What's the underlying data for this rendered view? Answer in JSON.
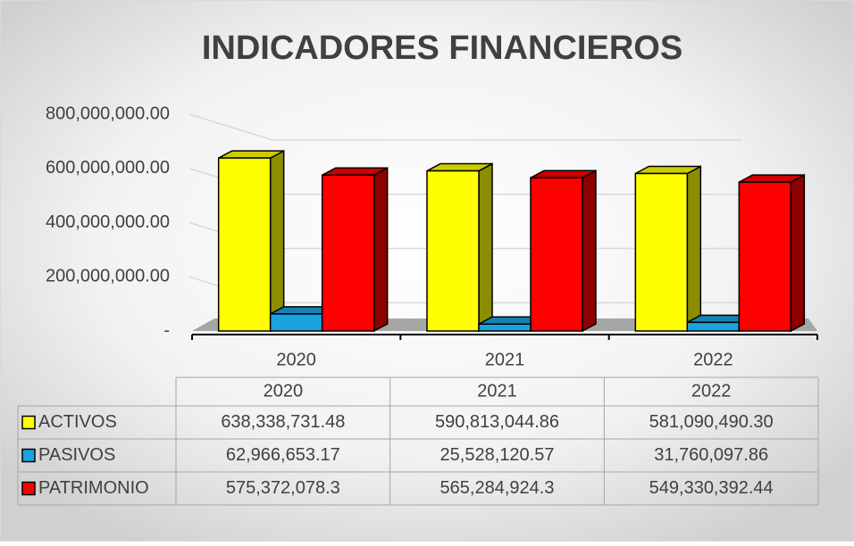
{
  "chart_data": {
    "type": "bar",
    "title": "INDICADORES FINANCIEROS",
    "categories": [
      "2020",
      "2021",
      "2022"
    ],
    "series": [
      {
        "name": "ACTIVOS",
        "color": "#ffff00",
        "values": [
          638338731.48,
          590813044.86,
          581090490.3
        ],
        "value_labels": [
          "638,338,731.48",
          "590,813,044.86",
          "581,090,490.30"
        ]
      },
      {
        "name": "PASIVOS",
        "color": "#1aa3e0",
        "values": [
          62966653.17,
          25528120.57,
          31760097.86
        ],
        "value_labels": [
          "62,966,653.17",
          "25,528,120.57",
          "31,760,097.86"
        ]
      },
      {
        "name": "PATRIMONIO",
        "color": "#ff0000",
        "values": [
          575372078.3,
          565284924.3,
          549330392.44
        ],
        "value_labels": [
          "575,372,078.3",
          "565,284,924.3",
          "549,330,392.44"
        ]
      }
    ],
    "ylim": [
      0,
      800000000
    ],
    "yticks": [
      {
        "value": 0,
        "label": "-"
      },
      {
        "value": 200000000,
        "label": "200,000,000.00"
      },
      {
        "value": 400000000,
        "label": "400,000,000.00"
      },
      {
        "value": 600000000,
        "label": "600,000,000.00"
      },
      {
        "value": 800000000,
        "label": "800,000,000.00"
      }
    ],
    "grid": true,
    "data_table": true
  }
}
